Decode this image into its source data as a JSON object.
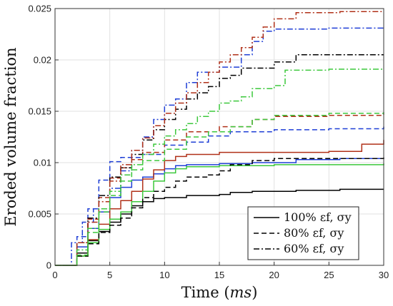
{
  "chart_data": {
    "type": "line",
    "title": "",
    "xlabel": "Time (ms)",
    "ylabel": "Eroded volume fraction",
    "xlim": [
      0,
      30
    ],
    "ylim": [
      0,
      0.025
    ],
    "xticks": [
      "0",
      "5",
      "10",
      "15",
      "20",
      "25",
      "30"
    ],
    "yticks": [
      "0",
      "0.005",
      "0.01",
      "0.015",
      "0.02",
      "0.025"
    ],
    "grid": true,
    "legend": {
      "placement": "bottom-right",
      "entries": [
        {
          "label": "100% εf, σy",
          "style": "solid"
        },
        {
          "label": "80% εf, σy",
          "style": "dashed"
        },
        {
          "label": "60% εf, σy",
          "style": "dashdot"
        }
      ]
    },
    "series": [
      {
        "color": "#000000",
        "style": "solid",
        "points": [
          [
            0,
            0
          ],
          [
            1.3,
            0
          ],
          [
            2,
            0.0012
          ],
          [
            3,
            0.0024
          ],
          [
            4,
            0.0033
          ],
          [
            5,
            0.0042
          ],
          [
            6,
            0.005
          ],
          [
            7,
            0.0058
          ],
          [
            8,
            0.0062
          ],
          [
            9,
            0.0065
          ],
          [
            10,
            0.0066
          ],
          [
            12,
            0.0068
          ],
          [
            15,
            0.0069
          ],
          [
            16,
            0.0071
          ],
          [
            18,
            0.0072
          ],
          [
            22,
            0.0073
          ],
          [
            26,
            0.0074
          ],
          [
            30,
            0.0074
          ]
        ]
      },
      {
        "color": "#1f3fd6",
        "style": "solid",
        "points": [
          [
            0,
            0
          ],
          [
            1.2,
            0
          ],
          [
            2,
            0.0018
          ],
          [
            3,
            0.0036
          ],
          [
            4,
            0.0052
          ],
          [
            5,
            0.0066
          ],
          [
            6,
            0.0076
          ],
          [
            7,
            0.0083
          ],
          [
            8,
            0.0086
          ],
          [
            9,
            0.0089
          ],
          [
            10,
            0.0094
          ],
          [
            11,
            0.0097
          ],
          [
            12,
            0.0098
          ],
          [
            15,
            0.0099
          ],
          [
            18,
            0.01
          ],
          [
            22,
            0.0103
          ],
          [
            26,
            0.0104
          ],
          [
            30,
            0.0104
          ]
        ]
      },
      {
        "color": "#b03018",
        "style": "solid",
        "points": [
          [
            0,
            0
          ],
          [
            1.5,
            0
          ],
          [
            2,
            0.0009
          ],
          [
            3,
            0.0025
          ],
          [
            4,
            0.004
          ],
          [
            5,
            0.0055
          ],
          [
            6,
            0.0063
          ],
          [
            7,
            0.0072
          ],
          [
            8,
            0.0084
          ],
          [
            9,
            0.0093
          ],
          [
            10,
            0.0102
          ],
          [
            11,
            0.0106
          ],
          [
            12,
            0.0108
          ],
          [
            15,
            0.011
          ],
          [
            20,
            0.011
          ],
          [
            25,
            0.0111
          ],
          [
            28,
            0.0118
          ],
          [
            30,
            0.0122
          ]
        ]
      },
      {
        "color": "#3cc83c",
        "style": "solid",
        "points": [
          [
            0,
            0
          ],
          [
            1.4,
            0
          ],
          [
            2,
            0.0009
          ],
          [
            3,
            0.0022
          ],
          [
            4,
            0.0035
          ],
          [
            5,
            0.0045
          ],
          [
            6,
            0.0052
          ],
          [
            7,
            0.0062
          ],
          [
            8,
            0.0072
          ],
          [
            9,
            0.0082
          ],
          [
            10,
            0.009
          ],
          [
            11,
            0.0094
          ],
          [
            12,
            0.0096
          ],
          [
            15,
            0.0097
          ],
          [
            20,
            0.0098
          ],
          [
            25,
            0.0098
          ],
          [
            30,
            0.0099
          ]
        ]
      },
      {
        "color": "#000000",
        "style": "dashed",
        "points": [
          [
            0,
            0
          ],
          [
            1.5,
            0
          ],
          [
            2,
            0.0009
          ],
          [
            3,
            0.0021
          ],
          [
            4,
            0.0032
          ],
          [
            5,
            0.0039
          ],
          [
            6,
            0.0046
          ],
          [
            7,
            0.0056
          ],
          [
            8,
            0.0066
          ],
          [
            9,
            0.0072
          ],
          [
            10,
            0.0076
          ],
          [
            11,
            0.0082
          ],
          [
            12,
            0.0086
          ],
          [
            14,
            0.0088
          ],
          [
            15,
            0.0092
          ],
          [
            16,
            0.0098
          ],
          [
            18,
            0.0102
          ],
          [
            20,
            0.0104
          ],
          [
            25,
            0.0104
          ],
          [
            30,
            0.0105
          ]
        ]
      },
      {
        "color": "#1f3fd6",
        "style": "dashed",
        "points": [
          [
            0,
            0
          ],
          [
            0.8,
            0
          ],
          [
            2,
            0.0028
          ],
          [
            3,
            0.0055
          ],
          [
            4,
            0.0083
          ],
          [
            5,
            0.0101
          ],
          [
            6,
            0.0105
          ],
          [
            8,
            0.0108
          ],
          [
            10,
            0.0117
          ],
          [
            12,
            0.012
          ],
          [
            14,
            0.0126
          ],
          [
            16,
            0.013
          ],
          [
            20,
            0.0132
          ],
          [
            25,
            0.0133
          ],
          [
            30,
            0.0135
          ]
        ]
      },
      {
        "color": "#b03018",
        "style": "dashed",
        "points": [
          [
            0,
            0
          ],
          [
            1,
            0
          ],
          [
            2,
            0.0022
          ],
          [
            3,
            0.0045
          ],
          [
            4,
            0.0066
          ],
          [
            5,
            0.0085
          ],
          [
            6,
            0.0095
          ],
          [
            7,
            0.0103
          ],
          [
            8,
            0.011
          ],
          [
            10,
            0.0122
          ],
          [
            12,
            0.013
          ],
          [
            15,
            0.0135
          ],
          [
            18,
            0.0142
          ],
          [
            20,
            0.0145
          ],
          [
            25,
            0.0146
          ],
          [
            30,
            0.0147
          ]
        ]
      },
      {
        "color": "#3cc83c",
        "style": "dashed",
        "points": [
          [
            0,
            0
          ],
          [
            1.5,
            0
          ],
          [
            2,
            0.001
          ],
          [
            3,
            0.0032
          ],
          [
            4,
            0.0052
          ],
          [
            5,
            0.0068
          ],
          [
            6,
            0.0082
          ],
          [
            7,
            0.0093
          ],
          [
            8,
            0.0102
          ],
          [
            10,
            0.0113
          ],
          [
            12,
            0.0125
          ],
          [
            14,
            0.013
          ],
          [
            16,
            0.0135
          ],
          [
            18,
            0.0142
          ],
          [
            20,
            0.0146
          ],
          [
            25,
            0.0148
          ],
          [
            30,
            0.0149
          ]
        ]
      },
      {
        "color": "#000000",
        "style": "dashdot",
        "points": [
          [
            0,
            0
          ],
          [
            1,
            0
          ],
          [
            2,
            0.0022
          ],
          [
            3,
            0.0046
          ],
          [
            4,
            0.0068
          ],
          [
            5,
            0.0086
          ],
          [
            6,
            0.0095
          ],
          [
            7,
            0.0108
          ],
          [
            8,
            0.0122
          ],
          [
            9,
            0.0132
          ],
          [
            10,
            0.0142
          ],
          [
            11,
            0.0152
          ],
          [
            12,
            0.0162
          ],
          [
            13,
            0.0168
          ],
          [
            14,
            0.0174
          ],
          [
            15,
            0.0182
          ],
          [
            16,
            0.0185
          ],
          [
            17,
            0.0192
          ],
          [
            20,
            0.0198
          ],
          [
            22,
            0.0205
          ],
          [
            26,
            0.0205
          ],
          [
            30,
            0.0205
          ]
        ]
      },
      {
        "color": "#1f3fd6",
        "style": "dashdot",
        "points": [
          [
            0,
            0
          ],
          [
            0.8,
            0
          ],
          [
            1.5,
            0.0022
          ],
          [
            2.5,
            0.0042
          ],
          [
            3.5,
            0.0055
          ],
          [
            5,
            0.0075
          ],
          [
            6,
            0.0092
          ],
          [
            7,
            0.0112
          ],
          [
            8,
            0.0125
          ],
          [
            9,
            0.0142
          ],
          [
            10,
            0.0156
          ],
          [
            11,
            0.0162
          ],
          [
            12,
            0.0178
          ],
          [
            13,
            0.0188
          ],
          [
            15,
            0.0193
          ],
          [
            17,
            0.0205
          ],
          [
            18,
            0.0218
          ],
          [
            19,
            0.0228
          ],
          [
            20,
            0.023
          ],
          [
            25,
            0.0231
          ],
          [
            30,
            0.0231
          ]
        ]
      },
      {
        "color": "#b03018",
        "style": "dashdot",
        "points": [
          [
            0,
            0
          ],
          [
            1,
            0
          ],
          [
            2,
            0.0022
          ],
          [
            3,
            0.0042
          ],
          [
            4,
            0.0062
          ],
          [
            5,
            0.0082
          ],
          [
            6,
            0.0098
          ],
          [
            7,
            0.0112
          ],
          [
            8,
            0.0124
          ],
          [
            9,
            0.0136
          ],
          [
            10,
            0.0148
          ],
          [
            11,
            0.0158
          ],
          [
            12,
            0.0168
          ],
          [
            13,
            0.0178
          ],
          [
            14,
            0.0188
          ],
          [
            15,
            0.0198
          ],
          [
            16,
            0.0205
          ],
          [
            17,
            0.0212
          ],
          [
            18,
            0.0222
          ],
          [
            19,
            0.0232
          ],
          [
            20,
            0.024
          ],
          [
            22,
            0.0246
          ],
          [
            26,
            0.0247
          ],
          [
            30,
            0.0247
          ]
        ]
      },
      {
        "color": "#3cc83c",
        "style": "dashdot",
        "points": [
          [
            0,
            0
          ],
          [
            1.4,
            0
          ],
          [
            2,
            0.0015
          ],
          [
            3,
            0.0036
          ],
          [
            4,
            0.0055
          ],
          [
            5,
            0.0072
          ],
          [
            6,
            0.0088
          ],
          [
            7,
            0.0098
          ],
          [
            8,
            0.0108
          ],
          [
            9,
            0.0118
          ],
          [
            10,
            0.0126
          ],
          [
            11,
            0.0132
          ],
          [
            12,
            0.0138
          ],
          [
            13,
            0.0145
          ],
          [
            14,
            0.015
          ],
          [
            15,
            0.0158
          ],
          [
            16,
            0.016
          ],
          [
            17,
            0.0164
          ],
          [
            18,
            0.0172
          ],
          [
            20,
            0.0175
          ],
          [
            21,
            0.019
          ],
          [
            25,
            0.0191
          ],
          [
            30,
            0.0191
          ]
        ]
      }
    ]
  }
}
